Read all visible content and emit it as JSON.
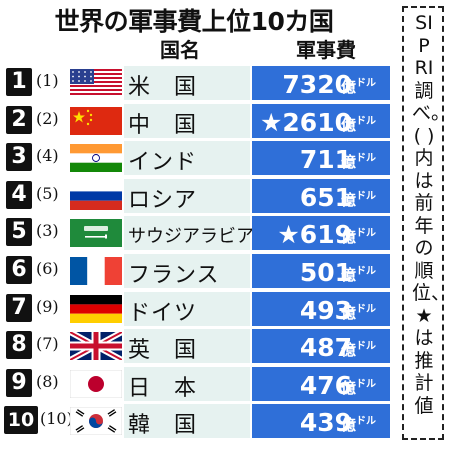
{
  "title": "世界の軍事費上位10カ国",
  "headers": {
    "name": "国名",
    "spend": "軍事費"
  },
  "unit": "億ドル",
  "unit_main": "億",
  "unit_sub": "ドル",
  "note": "SIPRI調べ。( )内は前年の順位、★は推計値",
  "chart_data": {
    "type": "bar",
    "title": "世界の軍事費上位10カ国",
    "xlabel": "国名",
    "ylabel": "軍事費",
    "unit": "億ドル",
    "legend": "★は推計値",
    "rows": [
      {
        "rank": "1",
        "prev_rank": "(1)",
        "country": "米　国",
        "value": 7320,
        "value_label": "7320",
        "estimated": false,
        "flag": "us"
      },
      {
        "rank": "2",
        "prev_rank": "(2)",
        "country": "中　国",
        "value": 2610,
        "value_label": "★2610",
        "estimated": true,
        "flag": "cn"
      },
      {
        "rank": "3",
        "prev_rank": "(4)",
        "country": "インド",
        "value": 711,
        "value_label": "711",
        "estimated": false,
        "flag": "in"
      },
      {
        "rank": "4",
        "prev_rank": "(5)",
        "country": "ロシア",
        "value": 651,
        "value_label": "651",
        "estimated": false,
        "flag": "ru"
      },
      {
        "rank": "5",
        "prev_rank": "(3)",
        "country": "サウジアラビア",
        "value": 619,
        "value_label": "★619",
        "estimated": true,
        "flag": "sa"
      },
      {
        "rank": "6",
        "prev_rank": "(6)",
        "country": "フランス",
        "value": 501,
        "value_label": "501",
        "estimated": false,
        "flag": "fr"
      },
      {
        "rank": "7",
        "prev_rank": "(9)",
        "country": "ドイツ",
        "value": 493,
        "value_label": "493",
        "estimated": false,
        "flag": "de"
      },
      {
        "rank": "8",
        "prev_rank": "(7)",
        "country": "英　国",
        "value": 487,
        "value_label": "487",
        "estimated": false,
        "flag": "gb"
      },
      {
        "rank": "9",
        "prev_rank": "(8)",
        "country": "日　本",
        "value": 476,
        "value_label": "476",
        "estimated": false,
        "flag": "jp"
      },
      {
        "rank": "10",
        "prev_rank": "(10)",
        "country": "韓　国",
        "value": 439,
        "value_label": "439",
        "estimated": false,
        "flag": "kr"
      }
    ]
  }
}
